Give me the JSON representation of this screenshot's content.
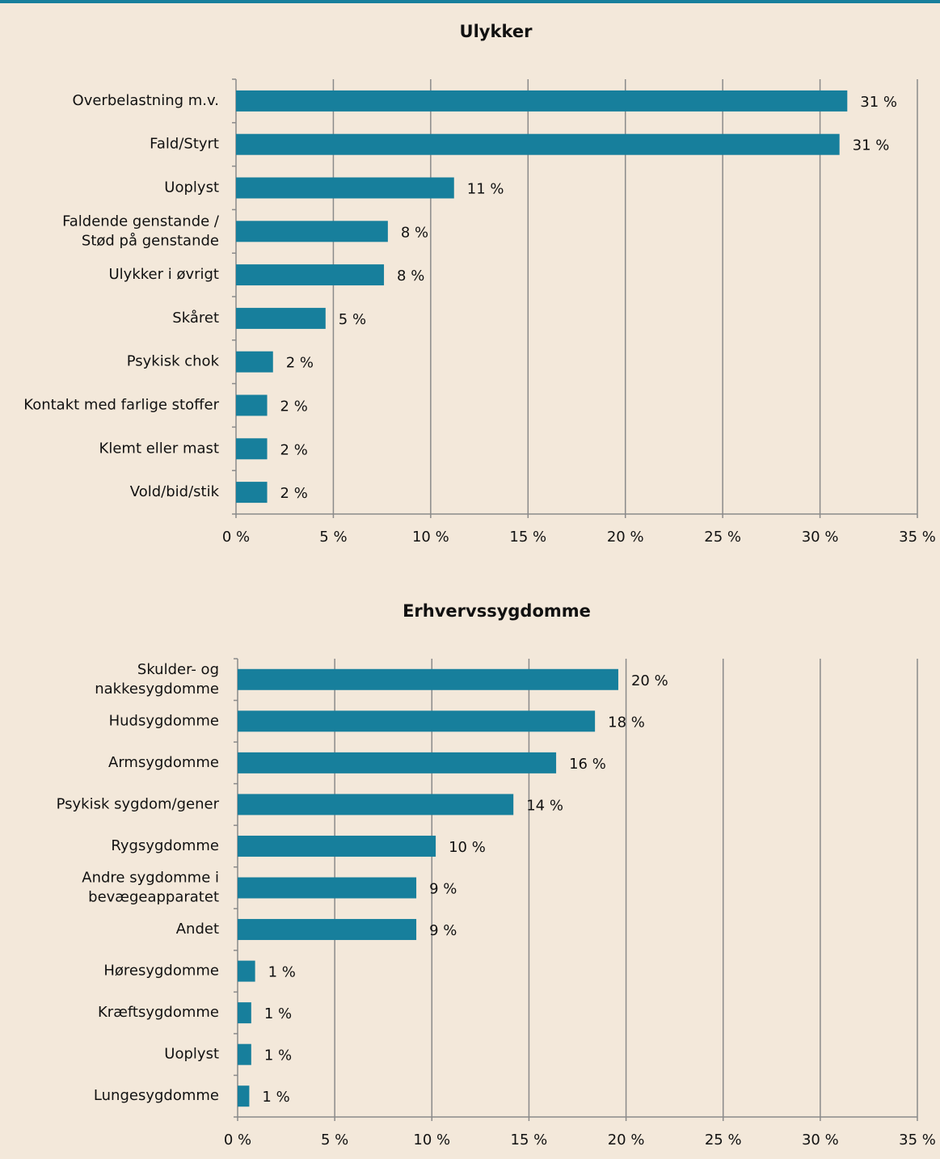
{
  "chart_data": [
    {
      "type": "barh",
      "title": "Ulykker",
      "color": "#177f9c",
      "grid": true,
      "categories": [
        "Overbelastning m.v.",
        "Fald/Styrt",
        "Uoplyst",
        "Faldende genstande /\nStød på genstande",
        "Ulykker i øvrigt",
        "Skåret",
        "Psykisk chok",
        "Kontakt med farlige stoffer",
        "Klemt eller mast",
        "Vold/bid/stik"
      ],
      "values": [
        31.4,
        31.0,
        11.2,
        7.8,
        7.6,
        4.6,
        1.9,
        1.6,
        1.6,
        1.6
      ],
      "value_labels": [
        "31 %",
        "31 %",
        "11 %",
        "8 %",
        "8 %",
        "5 %",
        "2 %",
        "2 %",
        "2 %",
        "2 %"
      ],
      "xlim": [
        0,
        35
      ],
      "xticks": [
        {
          "value": 0,
          "label": "0 %"
        },
        {
          "value": 5,
          "label": "5 %"
        },
        {
          "value": 10,
          "label": "10 %"
        },
        {
          "value": 15,
          "label": "15 %"
        },
        {
          "value": 20,
          "label": "20 %"
        },
        {
          "value": 25,
          "label": "25 %"
        },
        {
          "value": 30,
          "label": "30 %"
        },
        {
          "value": 35,
          "label": "35 %"
        }
      ]
    },
    {
      "type": "barh",
      "title": "Erhvervssygdomme",
      "color": "#177f9c",
      "grid": true,
      "categories": [
        "Skulder- og\nnakkesygdomme",
        "Hudsygdomme",
        "Armsygdomme",
        "Psykisk sygdom/gener",
        "Rygsygdomme",
        "Andre sygdomme i\nbevægeapparatet",
        "Andet",
        "Høresygdomme",
        "Kræftsygdomme",
        "Uoplyst",
        "Lungesygdomme"
      ],
      "values": [
        19.6,
        18.4,
        16.4,
        14.2,
        10.2,
        9.2,
        9.2,
        0.9,
        0.7,
        0.7,
        0.6
      ],
      "value_labels": [
        "20 %",
        "18 %",
        "16 %",
        "14 %",
        "10 %",
        "9 %",
        "9 %",
        "1 %",
        "1 %",
        "1 %",
        "1 %"
      ],
      "xlim": [
        0,
        35
      ],
      "xticks": [
        {
          "value": 0,
          "label": "0 %"
        },
        {
          "value": 5,
          "label": "5 %"
        },
        {
          "value": 10,
          "label": "10 %"
        },
        {
          "value": 15,
          "label": "15 %"
        },
        {
          "value": 20,
          "label": "20 %"
        },
        {
          "value": 25,
          "label": "25 %"
        },
        {
          "value": 30,
          "label": "30 %"
        },
        {
          "value": 35,
          "label": "35 %"
        }
      ]
    }
  ]
}
